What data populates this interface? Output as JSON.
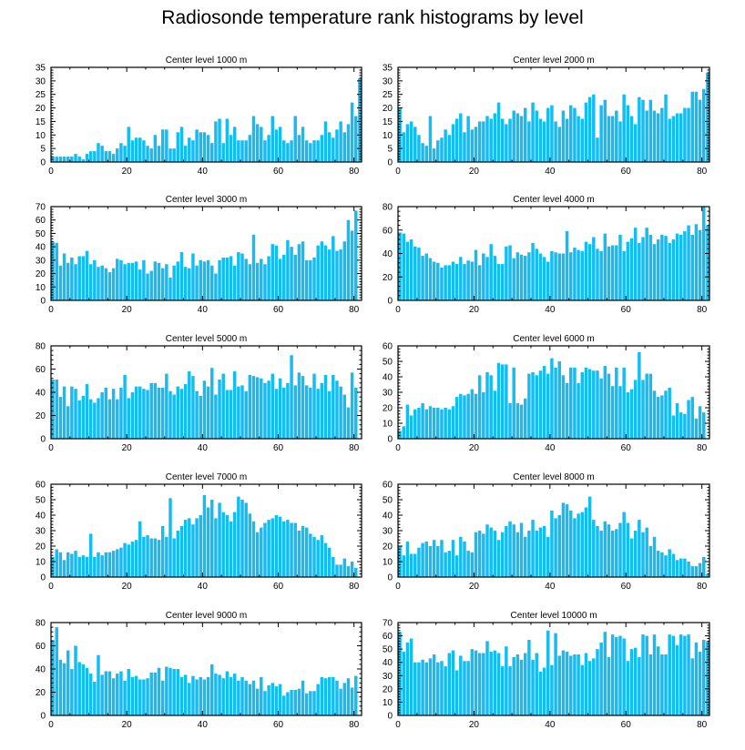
{
  "title": "Radiosonde temperature rank histograms by level",
  "colors": {
    "bar": "#14BCF2",
    "axis": "#000000",
    "background": "#FFFFFF"
  },
  "chart_data": [
    {
      "type": "bar",
      "title": "Center level 1000 m",
      "xlim": [
        0,
        82
      ],
      "ylim": [
        0,
        35
      ],
      "xticks": [
        0,
        20,
        40,
        60,
        80
      ],
      "yticks": [
        0,
        5,
        10,
        15,
        20,
        25,
        30,
        35
      ],
      "values": [
        2,
        2,
        2,
        2,
        2,
        2,
        3,
        2,
        1,
        3,
        4,
        4,
        7,
        6,
        4,
        4,
        3,
        5,
        7,
        6,
        13,
        8,
        9,
        9,
        8,
        6,
        5,
        10,
        6,
        12,
        12,
        5,
        5,
        11,
        13,
        6,
        9,
        8,
        12,
        11,
        11,
        10,
        7,
        15,
        16,
        7,
        16,
        10,
        13,
        8,
        8,
        8,
        10,
        17,
        14,
        13,
        8,
        10,
        17,
        12,
        13,
        8,
        7,
        8,
        17,
        10,
        13,
        8,
        7,
        8,
        8,
        10,
        15,
        11,
        9,
        12,
        15,
        11,
        14,
        22,
        17,
        31
      ]
    },
    {
      "type": "bar",
      "title": "Center level 2000 m",
      "xlim": [
        0,
        82
      ],
      "ylim": [
        0,
        35
      ],
      "xticks": [
        0,
        20,
        40,
        60,
        80
      ],
      "yticks": [
        0,
        5,
        10,
        15,
        20,
        25,
        30,
        35
      ],
      "values": [
        20,
        11,
        14,
        15,
        13,
        10,
        7,
        6,
        17,
        5,
        8,
        9,
        12,
        10,
        14,
        16,
        18,
        11,
        17,
        12,
        13,
        15,
        15,
        17,
        16,
        18,
        22,
        16,
        14,
        16,
        19,
        18,
        17,
        20,
        15,
        22,
        19,
        16,
        15,
        20,
        21,
        15,
        13,
        19,
        16,
        21,
        20,
        17,
        16,
        22,
        24,
        25,
        9,
        21,
        23,
        17,
        17,
        19,
        15,
        25,
        21,
        17,
        14,
        24,
        23,
        19,
        23,
        19,
        18,
        20,
        25,
        16,
        17,
        18,
        18,
        20,
        20,
        26,
        26,
        23,
        27,
        33
      ]
    },
    {
      "type": "bar",
      "title": "Center level 3000 m",
      "xlim": [
        0,
        82
      ],
      "ylim": [
        0,
        70
      ],
      "xticks": [
        0,
        20,
        40,
        60,
        80
      ],
      "yticks": [
        0,
        10,
        20,
        30,
        40,
        50,
        60,
        70
      ],
      "values": [
        44,
        43,
        26,
        35,
        28,
        32,
        27,
        33,
        33,
        37,
        27,
        30,
        25,
        26,
        24,
        21,
        24,
        31,
        30,
        27,
        28,
        28,
        29,
        23,
        30,
        20,
        22,
        29,
        28,
        24,
        27,
        17,
        26,
        29,
        36,
        25,
        24,
        35,
        26,
        30,
        29,
        30,
        26,
        20,
        30,
        32,
        32,
        33,
        26,
        36,
        35,
        31,
        27,
        49,
        28,
        31,
        27,
        33,
        42,
        41,
        31,
        34,
        45,
        40,
        34,
        42,
        44,
        30,
        30,
        32,
        41,
        44,
        41,
        38,
        48,
        37,
        38,
        44,
        60,
        52,
        67
      ]
    },
    {
      "type": "bar",
      "title": "Center level 4000 m",
      "xlim": [
        0,
        82
      ],
      "ylim": [
        0,
        80
      ],
      "xticks": [
        0,
        20,
        40,
        60,
        80
      ],
      "yticks": [
        0,
        20,
        40,
        60,
        80
      ],
      "values": [
        58,
        57,
        50,
        52,
        46,
        45,
        38,
        40,
        36,
        33,
        32,
        28,
        30,
        30,
        33,
        31,
        37,
        31,
        34,
        33,
        43,
        30,
        40,
        37,
        48,
        38,
        31,
        31,
        46,
        47,
        36,
        41,
        39,
        38,
        41,
        49,
        44,
        40,
        37,
        33,
        42,
        41,
        40,
        40,
        59,
        41,
        45,
        43,
        42,
        50,
        48,
        54,
        44,
        42,
        57,
        46,
        47,
        47,
        56,
        42,
        50,
        53,
        62,
        49,
        54,
        62,
        56,
        48,
        52,
        56,
        55,
        49,
        52,
        57,
        56,
        59,
        64,
        56,
        65,
        60,
        80,
        64
      ]
    },
    {
      "type": "bar",
      "title": "Center level 5000 m",
      "xlim": [
        0,
        82
      ],
      "ylim": [
        0,
        80
      ],
      "xticks": [
        0,
        20,
        40,
        60,
        80
      ],
      "yticks": [
        0,
        20,
        40,
        60,
        80
      ],
      "values": [
        51,
        51,
        36,
        45,
        28,
        45,
        43,
        33,
        37,
        47,
        34,
        31,
        35,
        40,
        44,
        34,
        43,
        34,
        44,
        55,
        35,
        40,
        45,
        45,
        43,
        42,
        48,
        48,
        44,
        44,
        56,
        41,
        38,
        45,
        43,
        47,
        58,
        54,
        41,
        37,
        50,
        45,
        61,
        38,
        51,
        56,
        42,
        42,
        58,
        45,
        46,
        41,
        55,
        54,
        53,
        52,
        48,
        50,
        56,
        43,
        52,
        44,
        48,
        72,
        46,
        57,
        54,
        46,
        44,
        56,
        43,
        48,
        55,
        41,
        55,
        50,
        45,
        38,
        27,
        57,
        44
      ]
    },
    {
      "type": "bar",
      "title": "Center level 6000 m",
      "xlim": [
        0,
        82
      ],
      "ylim": [
        0,
        60
      ],
      "xticks": [
        0,
        20,
        40,
        60,
        80
      ],
      "yticks": [
        0,
        10,
        20,
        30,
        40,
        50,
        60
      ],
      "values": [
        5,
        8,
        22,
        15,
        19,
        20,
        23,
        19,
        21,
        20,
        20,
        19,
        20,
        19,
        21,
        27,
        29,
        28,
        29,
        32,
        29,
        41,
        30,
        43,
        41,
        31,
        49,
        48,
        48,
        23,
        46,
        23,
        22,
        26,
        42,
        43,
        41,
        44,
        47,
        42,
        52,
        46,
        50,
        41,
        36,
        46,
        46,
        36,
        43,
        46,
        45,
        44,
        44,
        39,
        47,
        42,
        34,
        46,
        34,
        46,
        30,
        32,
        38,
        56,
        38,
        42,
        42,
        31,
        27,
        28,
        31,
        33,
        15,
        23,
        17,
        16,
        25,
        27,
        13,
        21,
        17
      ]
    },
    {
      "type": "bar",
      "title": "Center level 7000 m",
      "xlim": [
        0,
        82
      ],
      "ylim": [
        0,
        60
      ],
      "xticks": [
        0,
        20,
        40,
        60,
        80
      ],
      "yticks": [
        0,
        10,
        20,
        30,
        40,
        50,
        60
      ],
      "values": [
        13,
        18,
        16,
        11,
        16,
        15,
        17,
        13,
        14,
        13,
        28,
        13,
        16,
        14,
        16,
        16,
        17,
        18,
        19,
        22,
        21,
        23,
        24,
        36,
        26,
        27,
        25,
        25,
        24,
        33,
        26,
        51,
        25,
        30,
        33,
        37,
        38,
        34,
        38,
        40,
        53,
        45,
        50,
        38,
        48,
        42,
        40,
        36,
        42,
        52,
        50,
        48,
        41,
        36,
        29,
        32,
        35,
        37,
        38,
        40,
        39,
        36,
        37,
        35,
        35,
        30,
        33,
        32,
        28,
        26,
        24,
        27,
        22,
        19,
        13,
        8,
        8,
        12,
        7,
        10,
        6
      ]
    },
    {
      "type": "bar",
      "title": "Center level 8000 m",
      "xlim": [
        0,
        82
      ],
      "ylim": [
        0,
        60
      ],
      "xticks": [
        0,
        20,
        40,
        60,
        80
      ],
      "yticks": [
        0,
        10,
        20,
        30,
        40,
        50,
        60
      ],
      "values": [
        20,
        14,
        23,
        15,
        15,
        19,
        22,
        23,
        20,
        24,
        20,
        24,
        16,
        17,
        24,
        14,
        26,
        23,
        17,
        16,
        29,
        30,
        28,
        34,
        32,
        30,
        24,
        29,
        33,
        36,
        34,
        29,
        35,
        26,
        30,
        37,
        30,
        32,
        33,
        26,
        43,
        38,
        40,
        48,
        47,
        43,
        38,
        41,
        42,
        45,
        52,
        37,
        33,
        30,
        36,
        34,
        30,
        31,
        35,
        42,
        35,
        25,
        30,
        37,
        29,
        32,
        20,
        26,
        17,
        16,
        14,
        18,
        15,
        11,
        12,
        12,
        10,
        7,
        7,
        9,
        13,
        2
      ]
    },
    {
      "type": "bar",
      "title": "Center level 9000 m",
      "xlim": [
        0,
        82
      ],
      "ylim": [
        0,
        80
      ],
      "xticks": [
        0,
        20,
        40,
        60,
        80
      ],
      "yticks": [
        0,
        20,
        40,
        60,
        80
      ],
      "values": [
        65,
        76,
        48,
        45,
        56,
        40,
        60,
        46,
        44,
        41,
        36,
        29,
        52,
        35,
        38,
        38,
        32,
        36,
        38,
        30,
        40,
        33,
        34,
        31,
        31,
        32,
        37,
        37,
        41,
        30,
        42,
        41,
        40,
        40,
        33,
        35,
        28,
        34,
        31,
        33,
        31,
        33,
        44,
        36,
        35,
        32,
        38,
        33,
        36,
        30,
        33,
        30,
        27,
        30,
        23,
        33,
        21,
        26,
        28,
        25,
        27,
        17,
        20,
        22,
        22,
        23,
        30,
        19,
        21,
        21,
        27,
        33,
        32,
        33,
        33,
        30,
        23,
        28,
        32,
        24,
        34
      ]
    },
    {
      "type": "bar",
      "title": "Center level 10000 m",
      "xlim": [
        0,
        82
      ],
      "ylim": [
        0,
        70
      ],
      "xticks": [
        0,
        20,
        40,
        60,
        80
      ],
      "yticks": [
        0,
        10,
        20,
        30,
        40,
        50,
        60,
        70
      ],
      "values": [
        63,
        48,
        55,
        58,
        40,
        40,
        42,
        40,
        43,
        46,
        40,
        41,
        37,
        47,
        49,
        34,
        45,
        41,
        41,
        50,
        49,
        47,
        47,
        56,
        48,
        49,
        47,
        37,
        52,
        37,
        44,
        46,
        42,
        47,
        57,
        42,
        47,
        33,
        36,
        64,
        38,
        62,
        45,
        49,
        48,
        45,
        46,
        46,
        38,
        47,
        41,
        43,
        50,
        55,
        63,
        44,
        61,
        59,
        60,
        58,
        41,
        50,
        51,
        44,
        61,
        60,
        46,
        61,
        52,
        46,
        46,
        61,
        60,
        53,
        61,
        60,
        61,
        43,
        55,
        48,
        57,
        56
      ]
    }
  ]
}
